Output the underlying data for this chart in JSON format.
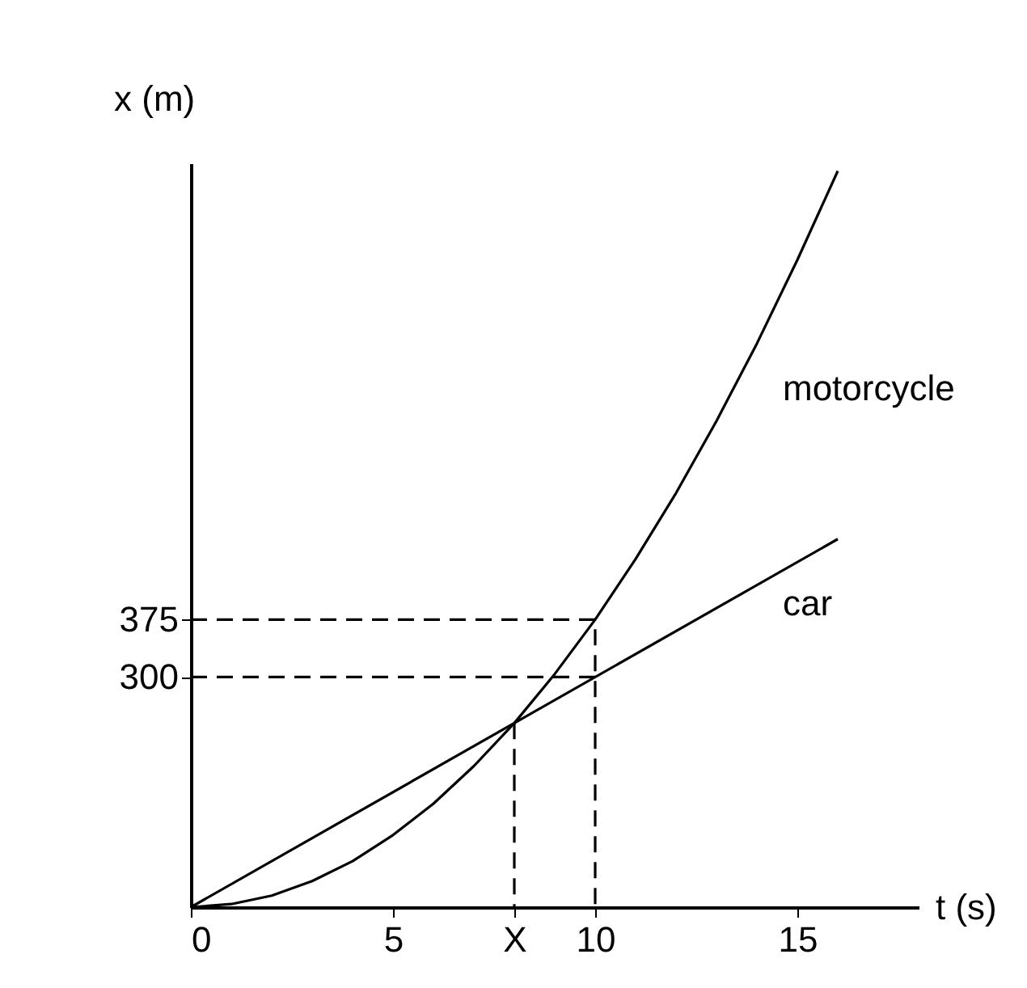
{
  "chart_data": {
    "type": "line",
    "xlabel": "t (s)",
    "ylabel": "x (m)",
    "xlim": [
      0,
      18
    ],
    "ylim": [
      0,
      970
    ],
    "xticks": [
      0,
      5,
      {
        "value": 8,
        "label": "X"
      },
      10,
      15
    ],
    "yticks": [
      300,
      375
    ],
    "grid": false,
    "legend": false,
    "marker": "none",
    "series": [
      {
        "name": "motorcycle",
        "color": "#000000",
        "line_style": "solid",
        "x": [
          0,
          1,
          2,
          3,
          4,
          5,
          6,
          7,
          8,
          9,
          10,
          11,
          12,
          13,
          14,
          15,
          16
        ],
        "values": [
          0,
          4,
          15,
          34,
          60,
          94,
          135,
          184,
          240,
          304,
          375,
          454,
          540,
          634,
          735,
          844,
          960
        ]
      },
      {
        "name": "car",
        "color": "#000000",
        "line_style": "solid",
        "x": [
          0,
          16
        ],
        "values": [
          0,
          480
        ]
      },
      {
        "color": "#000000",
        "line_style": "dashed",
        "x": [
          0,
          10,
          10
        ],
        "values": [
          375,
          375,
          0
        ]
      },
      {
        "color": "#000000",
        "line_style": "dashed",
        "x": [
          0,
          10
        ],
        "values": [
          300,
          300
        ]
      },
      {
        "color": "#000000",
        "line_style": "dashed",
        "x": [
          8,
          8
        ],
        "values": [
          240,
          0
        ]
      }
    ]
  }
}
